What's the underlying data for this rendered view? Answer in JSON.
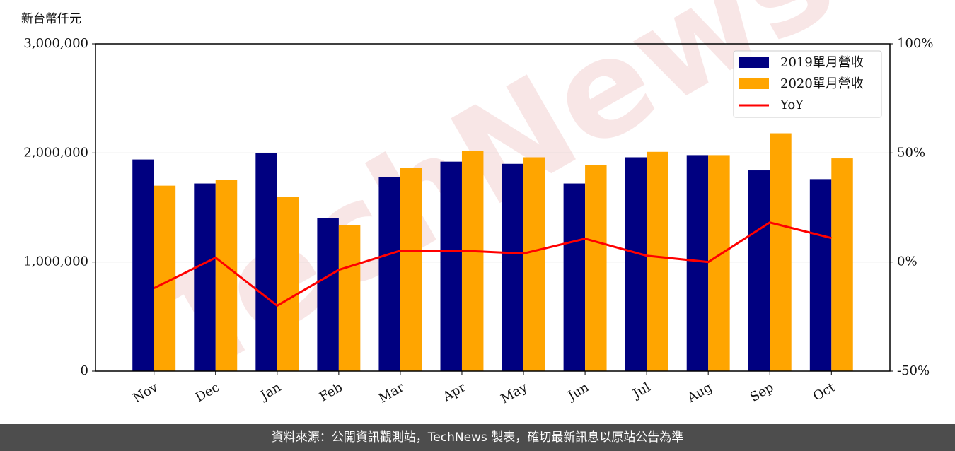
{
  "chart_data": {
    "type": "bar",
    "ylabel": "新台幣仟元",
    "watermark": "TechNews",
    "categories": [
      "Nov",
      "Dec",
      "Jan",
      "Feb",
      "Mar",
      "Apr",
      "May",
      "Jun",
      "Jul",
      "Aug",
      "Sep",
      "Oct"
    ],
    "series": [
      {
        "name": "2019單月營收",
        "color": "#000080",
        "values": [
          1940000,
          1720000,
          2000000,
          1400000,
          1780000,
          1920000,
          1900000,
          1720000,
          1960000,
          1980000,
          1840000,
          1760000
        ]
      },
      {
        "name": "2020單月營收",
        "color": "#ffa500",
        "values": [
          1700000,
          1750000,
          1600000,
          1340000,
          1860000,
          2020000,
          1960000,
          1890000,
          2010000,
          1980000,
          2180000,
          1950000
        ]
      },
      {
        "name": "YoY",
        "type": "line",
        "axis": "y2",
        "color": "#ff0000",
        "values": [
          -12,
          2,
          -20,
          -3.6,
          5.2,
          5.2,
          3.9,
          10.7,
          2.9,
          0,
          18.1,
          11
        ]
      }
    ],
    "ylim": [
      0,
      3000000
    ],
    "yticks": [
      0,
      {
        "value": 1000000,
        "label": "1,000,000"
      },
      {
        "value": 2000000,
        "label": "2,000,000"
      },
      {
        "value": 3000000,
        "label": "3,000,000"
      }
    ],
    "y2lim": [
      -50,
      100
    ],
    "y2ticks": [
      {
        "value": -50,
        "label": "-50%"
      },
      {
        "value": 0,
        "label": "0%"
      },
      {
        "value": 50,
        "label": "50%"
      },
      {
        "value": 100,
        "label": "100%"
      }
    ],
    "grid": true,
    "legend": "upper right"
  },
  "footer": "資料來源：公開資訊觀測站，TechNews 製表，確切最新訊息以原站公告為準"
}
